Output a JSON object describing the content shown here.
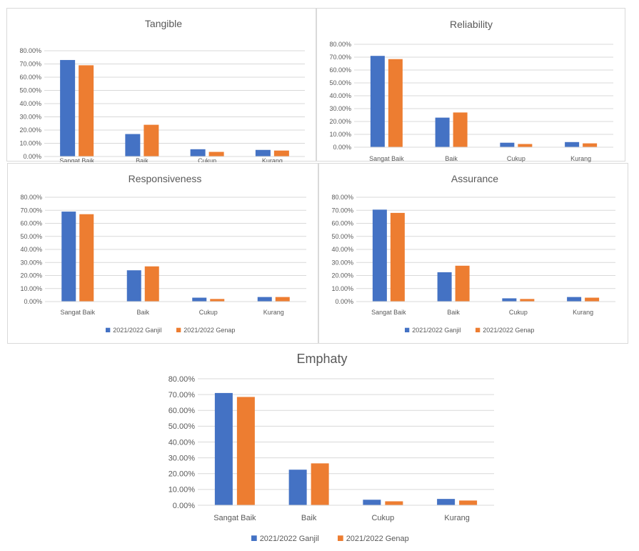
{
  "colors": {
    "ganjil": "#4472C4",
    "genap": "#ED7D31",
    "grid": "#d9d9d9",
    "text": "#595959"
  },
  "chart_data": [
    {
      "type": "bar",
      "title": "Tangible",
      "categories": [
        "Sangat Baik",
        "Baik",
        "Cukup",
        "Kurang"
      ],
      "yticks": [
        "0.00%",
        "10.00%",
        "20.00%",
        "30.00%",
        "40.00%",
        "50.00%",
        "60.00%",
        "70.00%",
        "80.00%"
      ],
      "ylim": [
        0,
        80
      ],
      "grid": true,
      "series": [
        {
          "name": "2021/2022 Ganjil",
          "values": [
            73,
            17,
            5.5,
            5
          ]
        },
        {
          "name": "2021/2022 Genap",
          "values": [
            69,
            24,
            3.5,
            4.5
          ]
        }
      ],
      "legend": "none"
    },
    {
      "type": "bar",
      "title": "Reliability",
      "categories": [
        "Sangat Baik",
        "Baik",
        "Cukup",
        "Kurang"
      ],
      "yticks": [
        "0.00%",
        "10.00%",
        "20.00%",
        "30.00%",
        "40.00%",
        "50.00%",
        "60.00%",
        "70.00%",
        "80.00%"
      ],
      "ylim": [
        0,
        80
      ],
      "grid": true,
      "series": [
        {
          "name": "2021/2022 Ganjil",
          "values": [
            71,
            23,
            3.5,
            4
          ]
        },
        {
          "name": "2021/2022 Genap",
          "values": [
            68.5,
            27,
            2.5,
            3
          ]
        }
      ],
      "legend": "none"
    },
    {
      "type": "bar",
      "title": "Responsiveness",
      "categories": [
        "Sangat Baik",
        "Baik",
        "Cukup",
        "Kurang"
      ],
      "yticks": [
        "0.00%",
        "10.00%",
        "20.00%",
        "30.00%",
        "40.00%",
        "50.00%",
        "60.00%",
        "70.00%",
        "80.00%"
      ],
      "ylim": [
        0,
        80
      ],
      "grid": true,
      "series": [
        {
          "name": "2021/2022 Ganjil",
          "values": [
            69,
            24,
            3,
            3.5
          ]
        },
        {
          "name": "2021/2022 Genap",
          "values": [
            67,
            27,
            2,
            3.5
          ]
        }
      ],
      "legend": "bottom"
    },
    {
      "type": "bar",
      "title": "Assurance",
      "categories": [
        "Sangat Baik",
        "Baik",
        "Cukup",
        "Kurang"
      ],
      "yticks": [
        "0.00%",
        "10.00%",
        "20.00%",
        "30.00%",
        "40.00%",
        "50.00%",
        "60.00%",
        "70.00%",
        "80.00%"
      ],
      "ylim": [
        0,
        80
      ],
      "grid": true,
      "series": [
        {
          "name": "2021/2022 Ganjil",
          "values": [
            70.5,
            22.5,
            2.5,
            3.5
          ]
        },
        {
          "name": "2021/2022 Genap",
          "values": [
            68,
            27.5,
            2,
            3
          ]
        }
      ],
      "legend": "bottom"
    },
    {
      "type": "bar",
      "title": "Emphaty",
      "categories": [
        "Sangat Baik",
        "Baik",
        "Cukup",
        "Kurang"
      ],
      "yticks": [
        "0.00%",
        "10.00%",
        "20.00%",
        "30.00%",
        "40.00%",
        "50.00%",
        "60.00%",
        "70.00%",
        "80.00%"
      ],
      "ylim": [
        0,
        80
      ],
      "grid": true,
      "series": [
        {
          "name": "2021/2022 Ganjil",
          "values": [
            71,
            22.5,
            3.5,
            4
          ]
        },
        {
          "name": "2021/2022 Genap",
          "values": [
            68.5,
            26.5,
            2.5,
            3
          ]
        }
      ],
      "legend": "bottom"
    }
  ]
}
